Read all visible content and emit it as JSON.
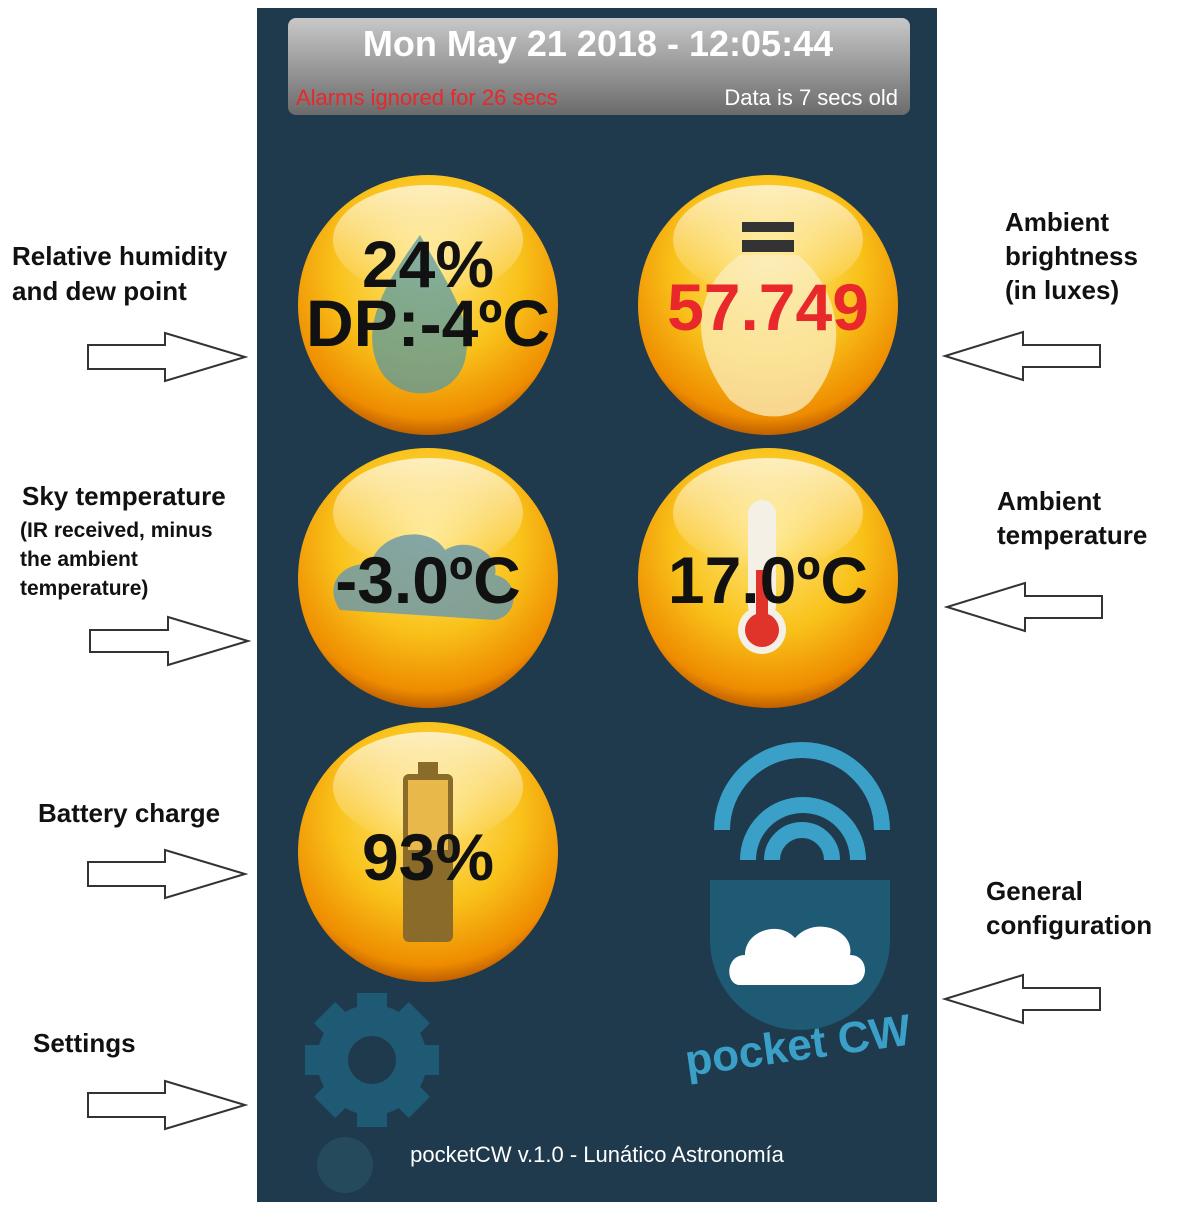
{
  "header": {
    "datetime": "Mon May 21 2018 - 12:05:44",
    "alarm_status": "Alarms ignored for 26 secs",
    "data_age": "Data is 7 secs old"
  },
  "tiles": [
    {
      "value": "24%",
      "detail": "DP:-4ºC"
    },
    {
      "value": "57.749"
    },
    {
      "value": "-3.0ºC"
    },
    {
      "value": "17.0ºC"
    },
    {
      "value": "93%"
    }
  ],
  "annotations": [
    {
      "lines": [
        "Relative humidity",
        "and dew point"
      ]
    },
    {
      "lines": [
        "Ambient",
        "brightness",
        "(in luxes)"
      ]
    },
    {
      "lines": [
        "Sky temperature"
      ],
      "note_lines": [
        "(IR received, minus",
        "the ambient",
        "temperature)"
      ]
    },
    {
      "lines": [
        "Ambient",
        "temperature"
      ]
    },
    {
      "lines": [
        "Battery charge"
      ]
    },
    {
      "lines": [
        "General",
        "configuration"
      ]
    },
    {
      "lines": [
        "Settings"
      ]
    }
  ],
  "logo": "pocket CW",
  "footer": "pocketCW v.1.0 - Lunático Astronomía"
}
